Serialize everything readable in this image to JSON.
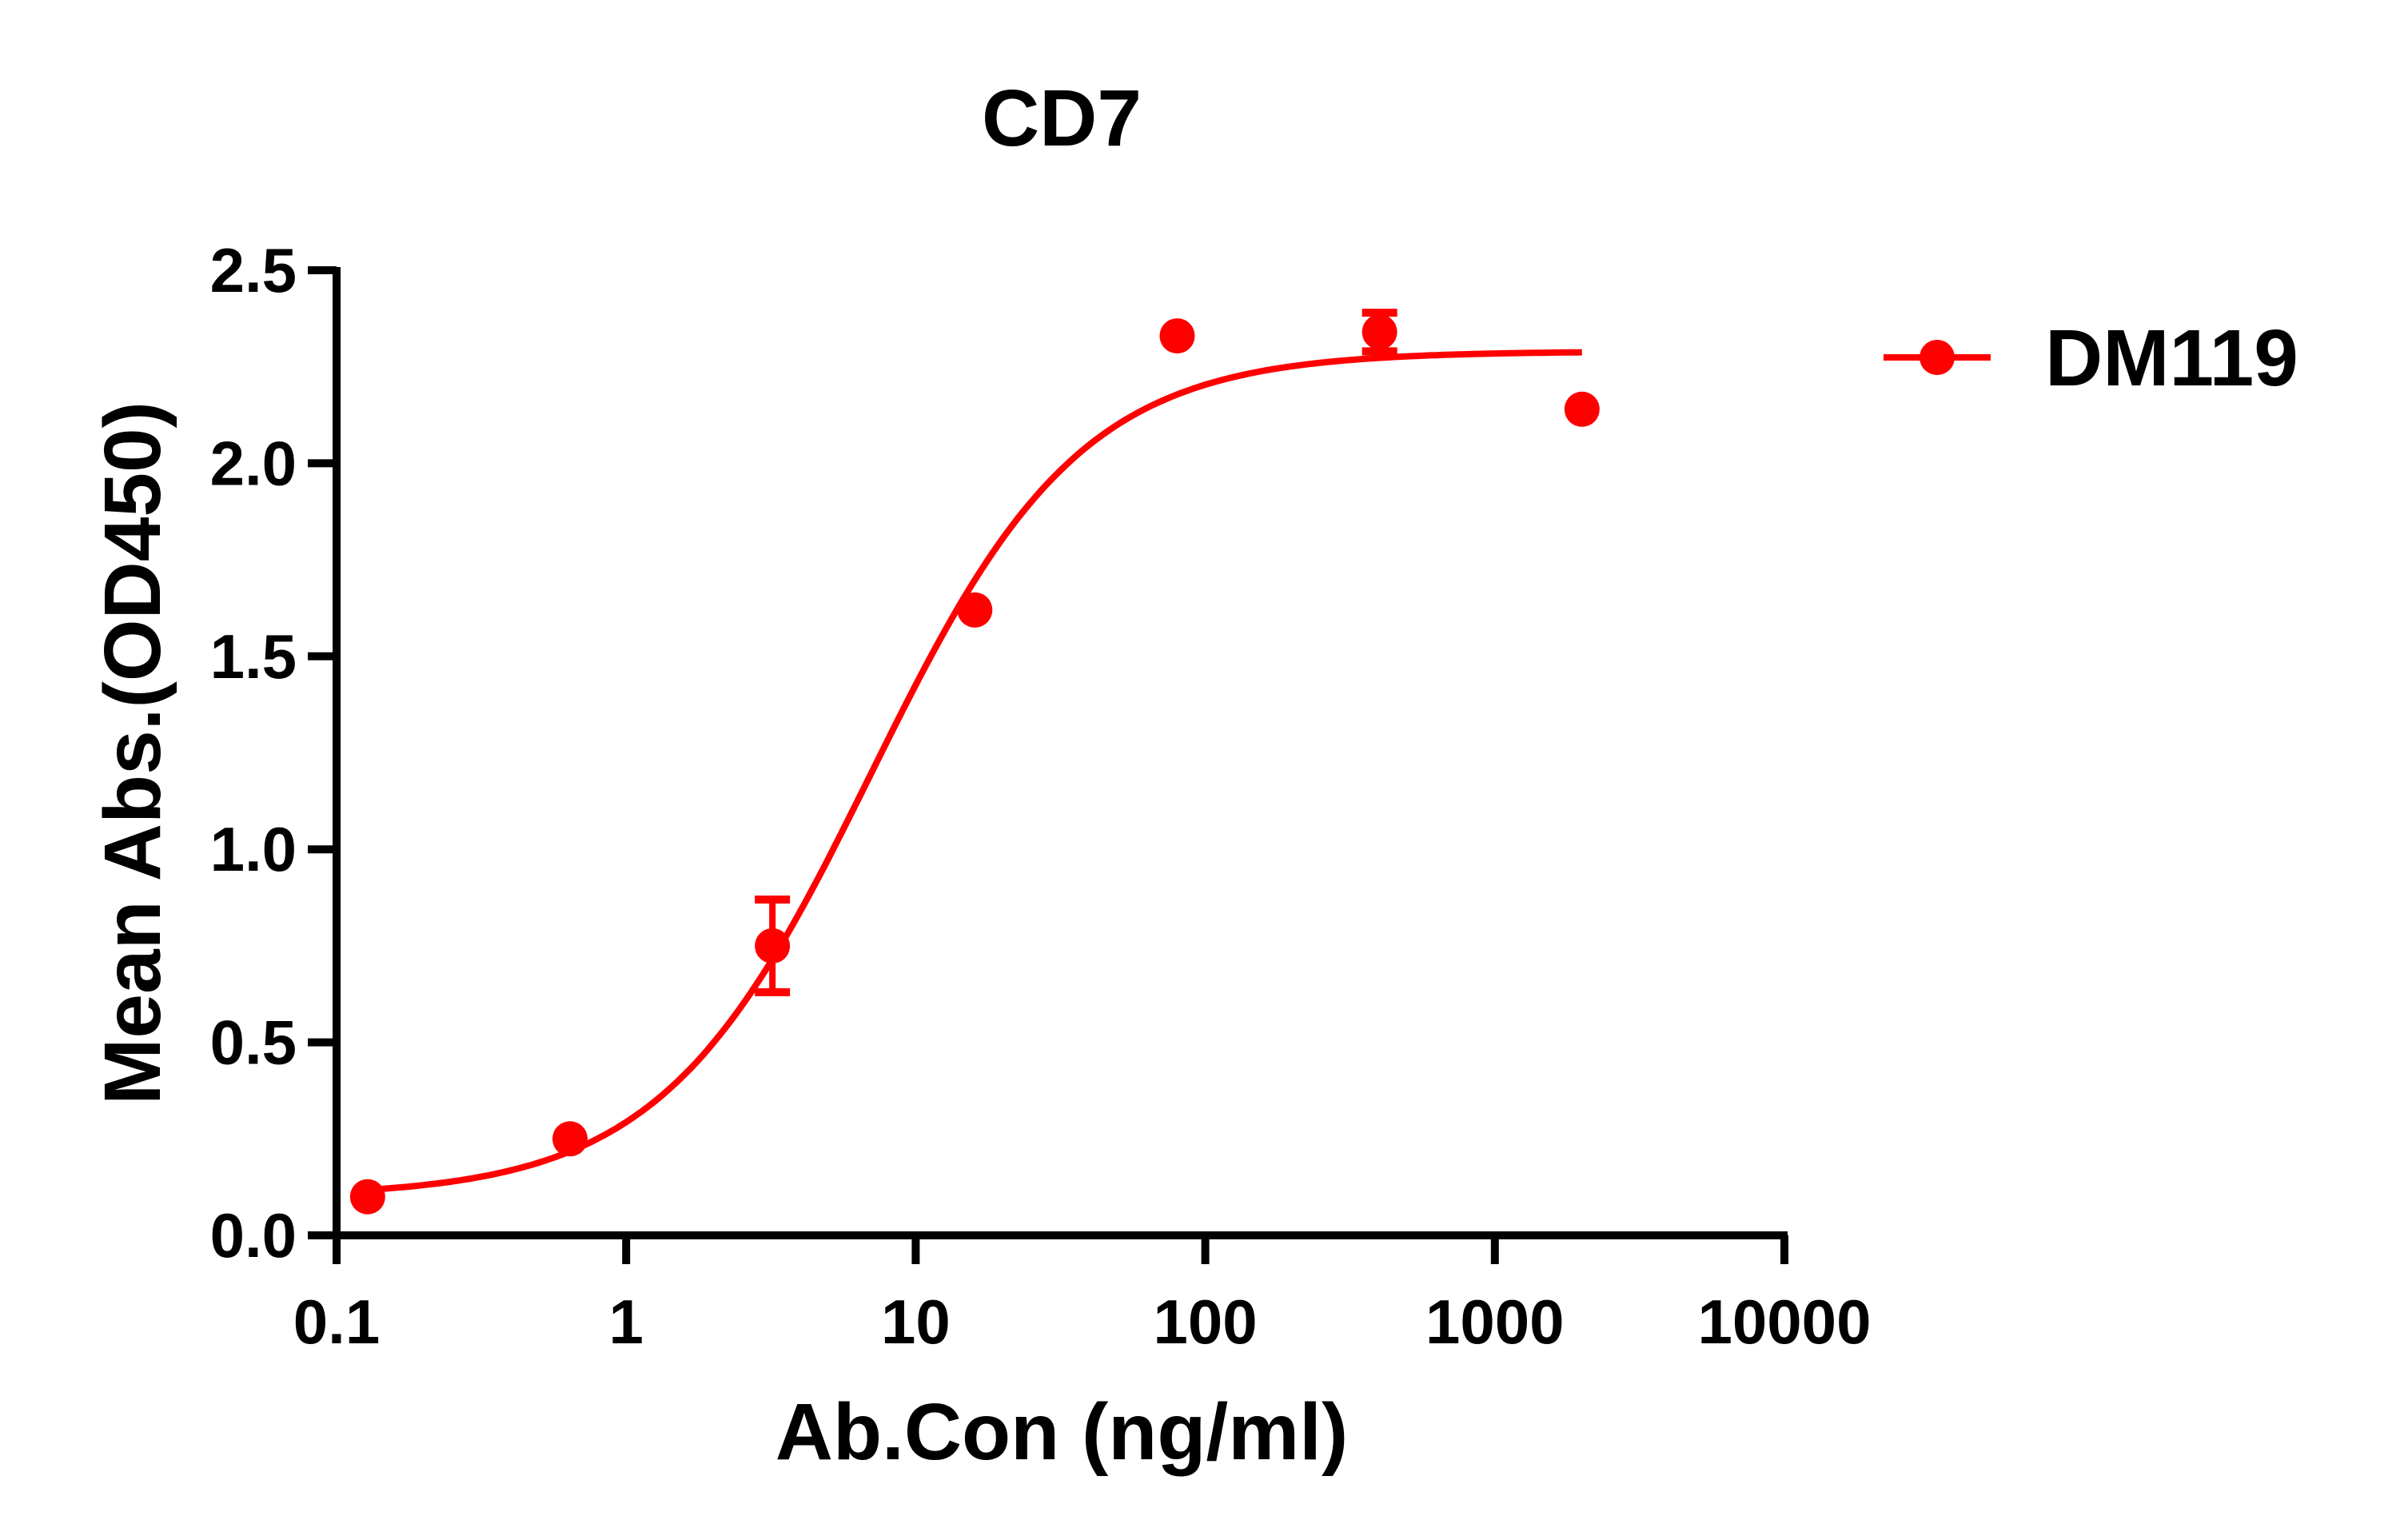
{
  "chart_data": {
    "type": "scatter",
    "title": "CD7",
    "xlabel": "Ab.Con (ng/ml)",
    "ylabel": "Mean Abs.(OD450)",
    "xscale": "log",
    "xlim": [
      0.1,
      10000
    ],
    "ylim": [
      0,
      2.5
    ],
    "xticks": [
      "0.1",
      "1",
      "10",
      "100",
      "1000",
      "10000"
    ],
    "xtick_values": [
      0.1,
      1,
      10,
      100,
      1000,
      10000
    ],
    "yticks": [
      "0.0",
      "0.5",
      "1.0",
      "1.5",
      "2.0",
      "2.5"
    ],
    "ytick_values": [
      0,
      0.5,
      1.0,
      1.5,
      2.0,
      2.5
    ],
    "grid": false,
    "legend_position": "right",
    "series": [
      {
        "name": "DM119",
        "color": "#ff0000",
        "x": [
          0.128,
          0.64,
          3.2,
          16,
          80,
          400,
          2000
        ],
        "y": [
          0.1,
          0.25,
          0.75,
          1.62,
          2.33,
          2.34,
          2.14
        ],
        "error": [
          0,
          0,
          0.12,
          0,
          0,
          0.05,
          0
        ],
        "fit": {
          "model": "4PL",
          "bottom": 0.1,
          "top": 2.29,
          "ec50": 7,
          "hill": 1.2
        }
      }
    ]
  }
}
